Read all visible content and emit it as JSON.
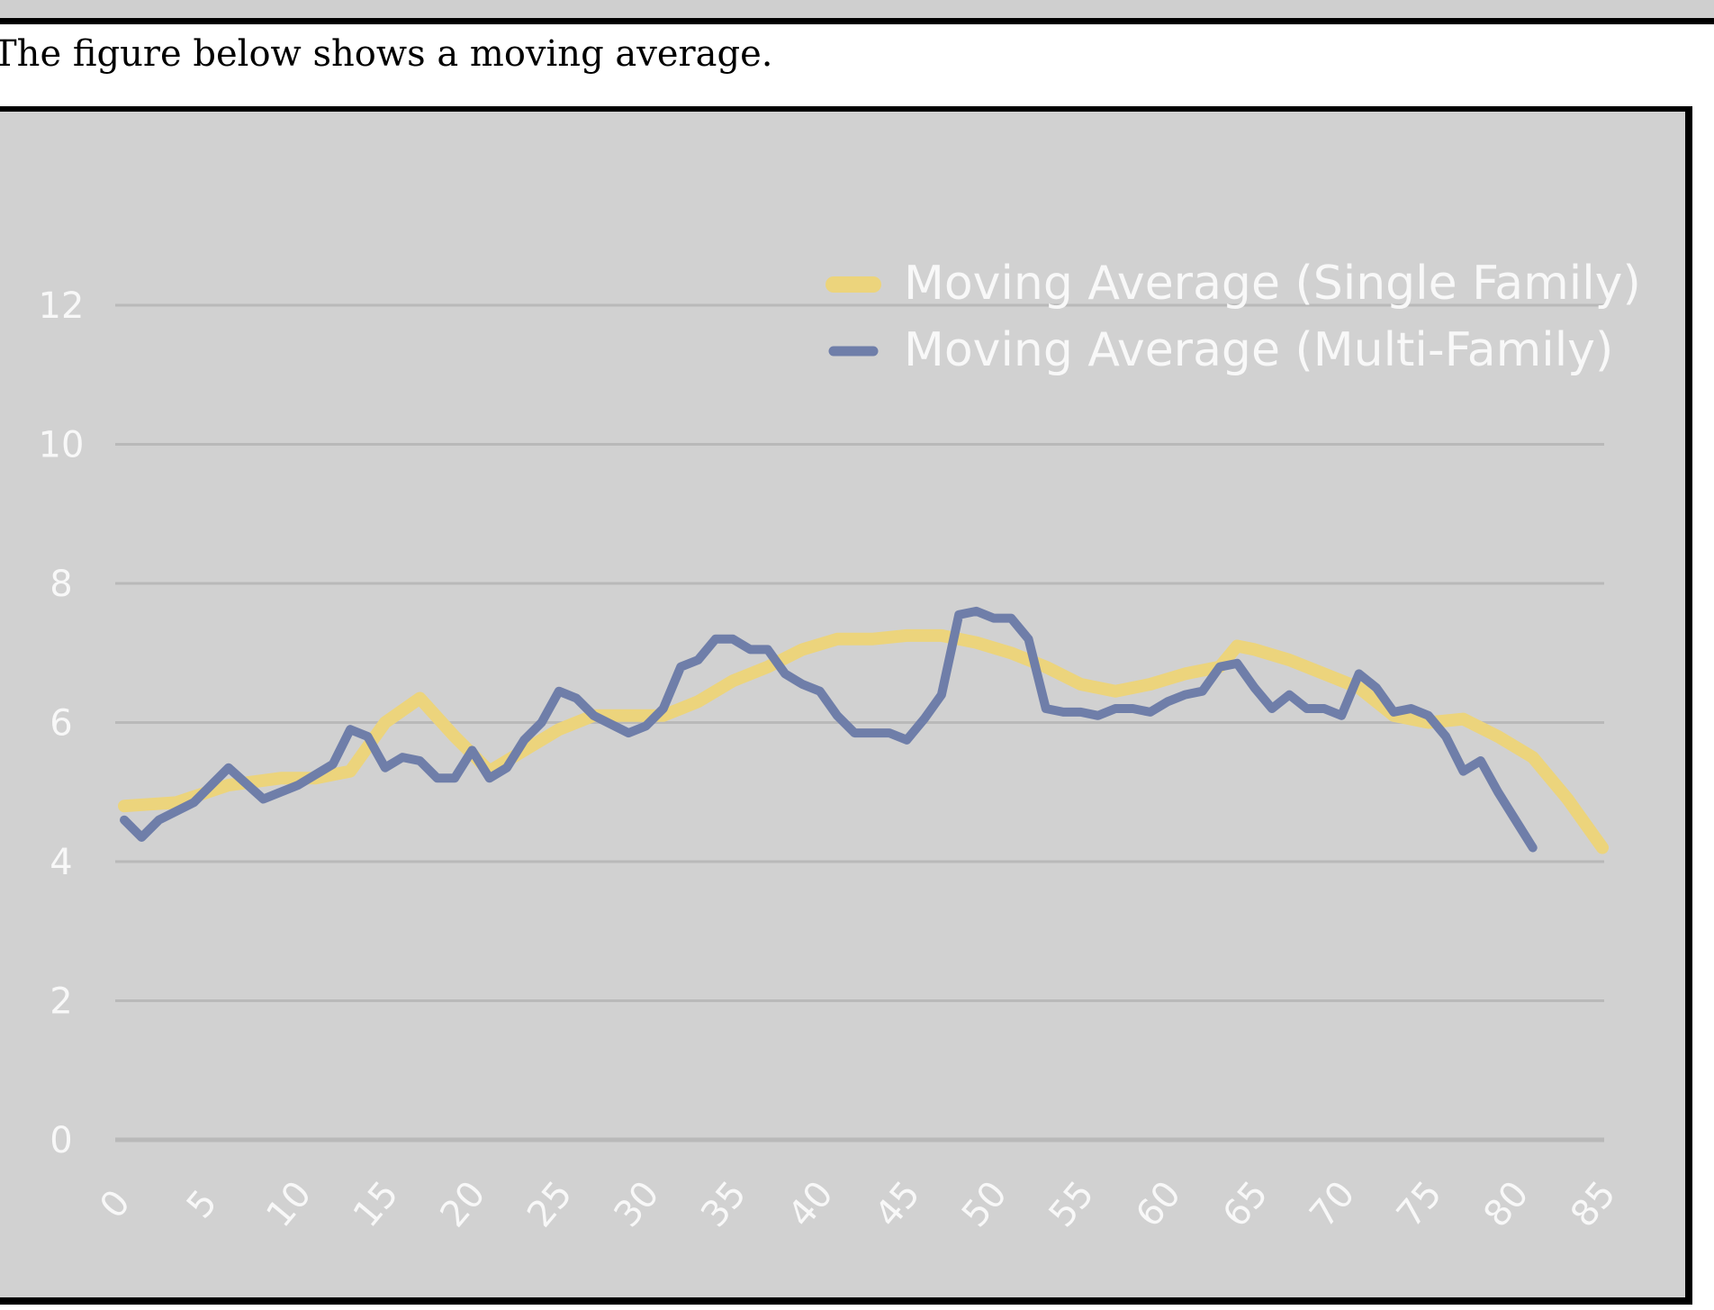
{
  "intro": {
    "text": "The figure below shows a moving average."
  },
  "colors": {
    "background": "#d1d1d1",
    "gridline": "#b9b9b9",
    "single_family": "#ecd47c",
    "multi_family": "#6f7ea9",
    "tick_text": "#f8f8f8"
  },
  "chart_data": {
    "type": "line",
    "title": "",
    "xlabel": "",
    "ylabel": "",
    "xlim": [
      0,
      85
    ],
    "ylim": [
      0,
      12
    ],
    "grid": true,
    "legend_position": "top-right",
    "x_ticks": [
      "0",
      "5",
      "10",
      "15",
      "20",
      "25",
      "30",
      "35",
      "40",
      "45",
      "50",
      "55",
      "60",
      "65",
      "70",
      "75",
      "80",
      "85"
    ],
    "y_ticks": [
      "0",
      "2",
      "4",
      "6",
      "8",
      "10",
      "12"
    ],
    "series": [
      {
        "name": "Moving Average (Single Family)",
        "points": [
          [
            0,
            4.8
          ],
          [
            3,
            4.85
          ],
          [
            6,
            5.1
          ],
          [
            9,
            5.2
          ],
          [
            11,
            5.2
          ],
          [
            13,
            5.3
          ],
          [
            15,
            6.0
          ],
          [
            17,
            6.35
          ],
          [
            19,
            5.8
          ],
          [
            21,
            5.3
          ],
          [
            23,
            5.6
          ],
          [
            25,
            5.9
          ],
          [
            27,
            6.1
          ],
          [
            29,
            6.1
          ],
          [
            31,
            6.1
          ],
          [
            33,
            6.3
          ],
          [
            35,
            6.6
          ],
          [
            37,
            6.8
          ],
          [
            39,
            7.05
          ],
          [
            41,
            7.2
          ],
          [
            43,
            7.2
          ],
          [
            45,
            7.25
          ],
          [
            47,
            7.25
          ],
          [
            49,
            7.15
          ],
          [
            51,
            7.0
          ],
          [
            53,
            6.8
          ],
          [
            55,
            6.55
          ],
          [
            57,
            6.45
          ],
          [
            59,
            6.55
          ],
          [
            61,
            6.7
          ],
          [
            63,
            6.8
          ],
          [
            64,
            7.1
          ],
          [
            65,
            7.05
          ],
          [
            67,
            6.9
          ],
          [
            69,
            6.7
          ],
          [
            71,
            6.5
          ],
          [
            73,
            6.1
          ],
          [
            75,
            6.0
          ],
          [
            77,
            6.05
          ],
          [
            79,
            5.8
          ],
          [
            81,
            5.5
          ],
          [
            83,
            4.9
          ],
          [
            85,
            4.2
          ]
        ]
      },
      {
        "name": "Moving Average (Multi-Family)",
        "points": [
          [
            0,
            4.6
          ],
          [
            1,
            4.35
          ],
          [
            2,
            4.6
          ],
          [
            4,
            4.85
          ],
          [
            6,
            5.35
          ],
          [
            8,
            4.9
          ],
          [
            10,
            5.1
          ],
          [
            12,
            5.4
          ],
          [
            13,
            5.9
          ],
          [
            14,
            5.8
          ],
          [
            15,
            5.35
          ],
          [
            16,
            5.5
          ],
          [
            17,
            5.45
          ],
          [
            18,
            5.2
          ],
          [
            19,
            5.2
          ],
          [
            20,
            5.6
          ],
          [
            21,
            5.2
          ],
          [
            22,
            5.35
          ],
          [
            23,
            5.75
          ],
          [
            24,
            6.0
          ],
          [
            25,
            6.45
          ],
          [
            26,
            6.35
          ],
          [
            27,
            6.1
          ],
          [
            29,
            5.85
          ],
          [
            30,
            5.95
          ],
          [
            31,
            6.2
          ],
          [
            32,
            6.8
          ],
          [
            33,
            6.9
          ],
          [
            34,
            7.2
          ],
          [
            35,
            7.2
          ],
          [
            36,
            7.05
          ],
          [
            37,
            7.05
          ],
          [
            38,
            6.7
          ],
          [
            39,
            6.55
          ],
          [
            40,
            6.45
          ],
          [
            41,
            6.1
          ],
          [
            42,
            5.85
          ],
          [
            43,
            5.85
          ],
          [
            44,
            5.85
          ],
          [
            45,
            5.75
          ],
          [
            46,
            6.05
          ],
          [
            47,
            6.4
          ],
          [
            48,
            7.55
          ],
          [
            49,
            7.6
          ],
          [
            50,
            7.5
          ],
          [
            51,
            7.5
          ],
          [
            52,
            7.2
          ],
          [
            53,
            6.2
          ],
          [
            54,
            6.15
          ],
          [
            55,
            6.15
          ],
          [
            56,
            6.1
          ],
          [
            57,
            6.2
          ],
          [
            58,
            6.2
          ],
          [
            59,
            6.15
          ],
          [
            60,
            6.3
          ],
          [
            61,
            6.4
          ],
          [
            62,
            6.45
          ],
          [
            63,
            6.8
          ],
          [
            64,
            6.85
          ],
          [
            65,
            6.5
          ],
          [
            66,
            6.2
          ],
          [
            67,
            6.4
          ],
          [
            68,
            6.2
          ],
          [
            69,
            6.2
          ],
          [
            70,
            6.1
          ],
          [
            71,
            6.7
          ],
          [
            72,
            6.5
          ],
          [
            73,
            6.15
          ],
          [
            74,
            6.2
          ],
          [
            75,
            6.1
          ],
          [
            76,
            5.8
          ],
          [
            77,
            5.3
          ],
          [
            78,
            5.45
          ],
          [
            79,
            5.0
          ],
          [
            80,
            4.6
          ],
          [
            81,
            4.2
          ]
        ]
      }
    ]
  }
}
